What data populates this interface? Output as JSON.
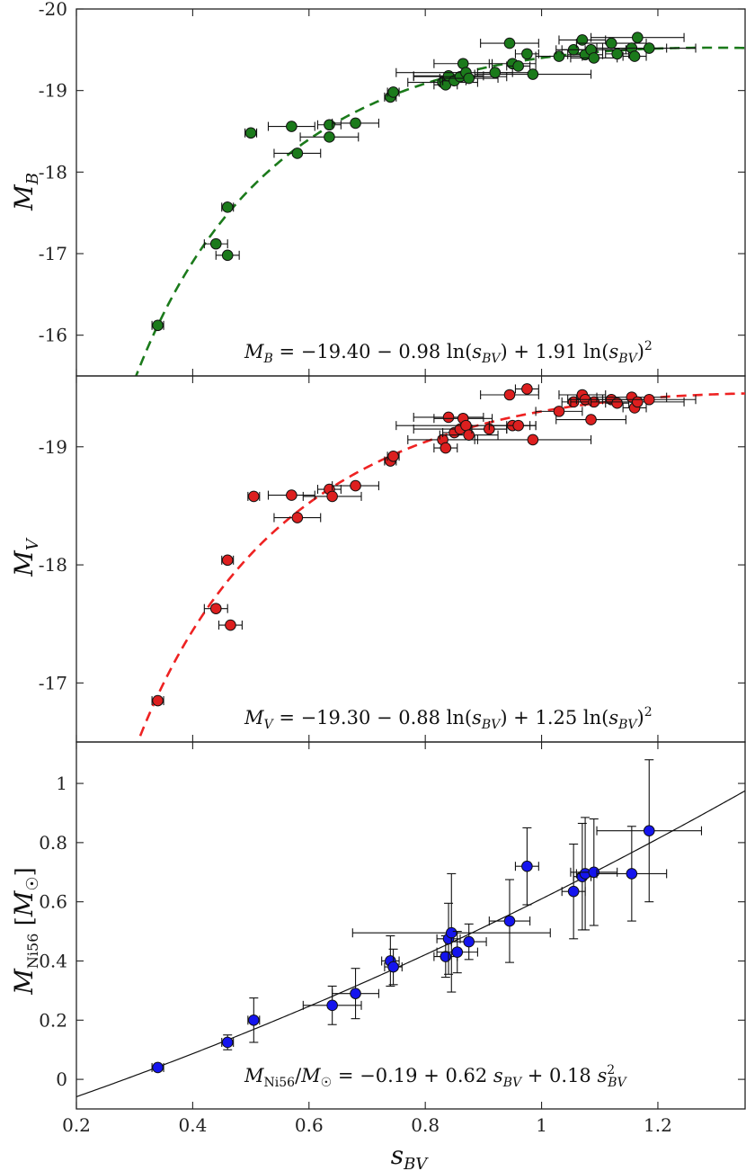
{
  "chart_data": [
    {
      "type": "scatter",
      "panel": "top",
      "ylabel": "M_B",
      "ylim": [
        -15.5,
        -20
      ],
      "yticks": [
        -16,
        -17,
        -18,
        -19,
        -20
      ],
      "xlim": [
        0.2,
        1.35
      ],
      "color": "#1b7a1b",
      "fit_color": "#1b7a1b",
      "fit_coeffs": [
        -19.4,
        -0.98,
        1.91
      ],
      "fit_equation": "M_B = −19.40 − 0.98 ln(s_BV) + 1.91 ln(s_BV)²",
      "points": [
        {
          "x": 0.34,
          "y": -16.12,
          "xerr": 0.01
        },
        {
          "x": 0.44,
          "y": -17.12,
          "xerr": 0.02
        },
        {
          "x": 0.46,
          "y": -16.98,
          "xerr": 0.02
        },
        {
          "x": 0.46,
          "y": -17.57,
          "xerr": 0.01
        },
        {
          "x": 0.5,
          "y": -18.48,
          "xerr": 0.01
        },
        {
          "x": 0.57,
          "y": -18.56,
          "xerr": 0.04
        },
        {
          "x": 0.58,
          "y": -18.23,
          "xerr": 0.04
        },
        {
          "x": 0.635,
          "y": -18.58,
          "xerr": 0.02
        },
        {
          "x": 0.635,
          "y": -18.43,
          "xerr": 0.05
        },
        {
          "x": 0.68,
          "y": -18.6,
          "xerr": 0.04
        },
        {
          "x": 0.74,
          "y": -18.92,
          "xerr": 0.01
        },
        {
          "x": 0.745,
          "y": -18.98,
          "xerr": 0.01
        },
        {
          "x": 0.83,
          "y": -19.1,
          "xerr": 0.06
        },
        {
          "x": 0.835,
          "y": -19.07,
          "xerr": 0.02
        },
        {
          "x": 0.84,
          "y": -19.18,
          "xerr": 0.06
        },
        {
          "x": 0.85,
          "y": -19.12,
          "xerr": 0.02
        },
        {
          "x": 0.86,
          "y": -19.17,
          "xerr": 0.08
        },
        {
          "x": 0.865,
          "y": -19.33,
          "xerr": 0.05
        },
        {
          "x": 0.87,
          "y": -19.22,
          "xerr": 0.12
        },
        {
          "x": 0.875,
          "y": -19.15,
          "xerr": 0.05
        },
        {
          "x": 0.945,
          "y": -19.58,
          "xerr": 0.05
        },
        {
          "x": 0.95,
          "y": -19.33,
          "xerr": 0.04
        },
        {
          "x": 0.96,
          "y": -19.3,
          "xerr": 0.02
        },
        {
          "x": 0.975,
          "y": -19.45,
          "xerr": 0.02
        },
        {
          "x": 0.985,
          "y": -19.2,
          "xerr": 0.1
        },
        {
          "x": 1.03,
          "y": -19.42,
          "xerr": 0.04
        },
        {
          "x": 1.055,
          "y": -19.5,
          "xerr": 0.02
        },
        {
          "x": 1.07,
          "y": -19.62,
          "xerr": 0.04
        },
        {
          "x": 1.075,
          "y": -19.44,
          "xerr": 0.03
        },
        {
          "x": 1.085,
          "y": -19.5,
          "xerr": 0.06
        },
        {
          "x": 1.09,
          "y": -19.4,
          "xerr": 0.04
        },
        {
          "x": 1.12,
          "y": -19.58,
          "xerr": 0.06
        },
        {
          "x": 1.13,
          "y": -19.45,
          "xerr": 0.02
        },
        {
          "x": 1.155,
          "y": -19.52,
          "xerr": 0.06
        },
        {
          "x": 1.16,
          "y": -19.42,
          "xerr": 0.02
        },
        {
          "x": 1.165,
          "y": -19.65,
          "xerr": 0.08
        },
        {
          "x": 1.185,
          "y": -19.52,
          "xerr": 0.08
        },
        {
          "x": 0.92,
          "y": -19.22,
          "xerr": 0.03
        }
      ]
    },
    {
      "type": "scatter",
      "panel": "middle",
      "ylabel": "M_V",
      "ylim": [
        -16.5,
        -19.6
      ],
      "yticks": [
        -17,
        -18,
        -19
      ],
      "xlim": [
        0.2,
        1.35
      ],
      "color": "#dd1f1f",
      "fit_color": "#ee2222",
      "fit_coeffs": [
        -19.3,
        -0.88,
        1.25
      ],
      "fit_equation": "M_V = −19.30 − 0.88 ln(s_BV) + 1.25 ln(s_BV)²",
      "points": [
        {
          "x": 0.34,
          "y": -16.85,
          "xerr": 0.01
        },
        {
          "x": 0.44,
          "y": -17.63,
          "xerr": 0.02
        },
        {
          "x": 0.465,
          "y": -17.49,
          "xerr": 0.02
        },
        {
          "x": 0.46,
          "y": -18.04,
          "xerr": 0.01
        },
        {
          "x": 0.505,
          "y": -18.58,
          "xerr": 0.01
        },
        {
          "x": 0.57,
          "y": -18.59,
          "xerr": 0.04
        },
        {
          "x": 0.58,
          "y": -18.4,
          "xerr": 0.04
        },
        {
          "x": 0.635,
          "y": -18.64,
          "xerr": 0.02
        },
        {
          "x": 0.64,
          "y": -18.58,
          "xerr": 0.05
        },
        {
          "x": 0.68,
          "y": -18.67,
          "xerr": 0.04
        },
        {
          "x": 0.74,
          "y": -18.88,
          "xerr": 0.01
        },
        {
          "x": 0.745,
          "y": -18.92,
          "xerr": 0.01
        },
        {
          "x": 0.83,
          "y": -19.06,
          "xerr": 0.06
        },
        {
          "x": 0.835,
          "y": -18.99,
          "xerr": 0.02
        },
        {
          "x": 0.84,
          "y": -19.25,
          "xerr": 0.06
        },
        {
          "x": 0.85,
          "y": -19.12,
          "xerr": 0.02
        },
        {
          "x": 0.86,
          "y": -19.15,
          "xerr": 0.08
        },
        {
          "x": 0.865,
          "y": -19.24,
          "xerr": 0.05
        },
        {
          "x": 0.87,
          "y": -19.18,
          "xerr": 0.12
        },
        {
          "x": 0.875,
          "y": -19.1,
          "xerr": 0.05
        },
        {
          "x": 0.91,
          "y": -19.15,
          "xerr": 0.03
        },
        {
          "x": 0.945,
          "y": -19.44,
          "xerr": 0.05
        },
        {
          "x": 0.95,
          "y": -19.18,
          "xerr": 0.04
        },
        {
          "x": 0.96,
          "y": -19.18,
          "xerr": 0.02
        },
        {
          "x": 0.975,
          "y": -19.49,
          "xerr": 0.02
        },
        {
          "x": 0.985,
          "y": -19.06,
          "xerr": 0.1
        },
        {
          "x": 1.03,
          "y": -19.3,
          "xerr": 0.04
        },
        {
          "x": 1.055,
          "y": -19.38,
          "xerr": 0.02
        },
        {
          "x": 1.07,
          "y": -19.44,
          "xerr": 0.04
        },
        {
          "x": 1.075,
          "y": -19.4,
          "xerr": 0.03
        },
        {
          "x": 1.085,
          "y": -19.23,
          "xerr": 0.06
        },
        {
          "x": 1.09,
          "y": -19.38,
          "xerr": 0.04
        },
        {
          "x": 1.12,
          "y": -19.4,
          "xerr": 0.06
        },
        {
          "x": 1.13,
          "y": -19.37,
          "xerr": 0.02
        },
        {
          "x": 1.155,
          "y": -19.42,
          "xerr": 0.06
        },
        {
          "x": 1.16,
          "y": -19.33,
          "xerr": 0.02
        },
        {
          "x": 1.165,
          "y": -19.38,
          "xerr": 0.08
        },
        {
          "x": 1.185,
          "y": -19.4,
          "xerr": 0.08
        }
      ]
    },
    {
      "type": "scatter",
      "panel": "bottom",
      "ylabel": "M_Ni56 [M_☉]",
      "xlabel": "s_BV",
      "ylim": [
        -0.1,
        1.14
      ],
      "yticks": [
        0,
        0.2,
        0.4,
        0.6,
        0.8,
        1
      ],
      "ytick_labels": [
        "0",
        "0.2",
        "0.4",
        "0.6",
        "0.8",
        "1"
      ],
      "xlim": [
        0.2,
        1.35
      ],
      "xticks": [
        0.2,
        0.4,
        0.6,
        0.8,
        1,
        1.2
      ],
      "xtick_labels": [
        "0.2",
        "0.4",
        "0.6",
        "0.8",
        "1",
        "1.2"
      ],
      "color": "#1515ee",
      "fit_color": "#111111",
      "fit_coeffs": [
        -0.19,
        0.62,
        0.18
      ],
      "fit_equation": "M_Ni56/M_☉ = −0.19 + 0.62 s_BV + 0.18 s_BV²",
      "points": [
        {
          "x": 0.34,
          "y": 0.04,
          "xerr": 0.01,
          "yerr": 0.01
        },
        {
          "x": 0.46,
          "y": 0.125,
          "xerr": 0.01,
          "yerr": 0.025
        },
        {
          "x": 0.505,
          "y": 0.2,
          "xerr": 0.01,
          "yerr": 0.075
        },
        {
          "x": 0.64,
          "y": 0.25,
          "xerr": 0.05,
          "yerr": 0.065
        },
        {
          "x": 0.68,
          "y": 0.29,
          "xerr": 0.04,
          "yerr": 0.085
        },
        {
          "x": 0.74,
          "y": 0.4,
          "xerr": 0.015,
          "yerr": 0.085
        },
        {
          "x": 0.745,
          "y": 0.38,
          "xerr": 0.015,
          "yerr": 0.06
        },
        {
          "x": 0.835,
          "y": 0.415,
          "xerr": 0.02,
          "yerr": 0.07
        },
        {
          "x": 0.84,
          "y": 0.475,
          "xerr": 0.02,
          "yerr": 0.12
        },
        {
          "x": 0.845,
          "y": 0.495,
          "xerr": 0.17,
          "yerr": 0.2
        },
        {
          "x": 0.855,
          "y": 0.43,
          "xerr": 0.035,
          "yerr": 0.07
        },
        {
          "x": 0.875,
          "y": 0.465,
          "xerr": 0.03,
          "yerr": 0.06
        },
        {
          "x": 0.945,
          "y": 0.535,
          "xerr": 0.035,
          "yerr": 0.14
        },
        {
          "x": 0.975,
          "y": 0.72,
          "xerr": 0.02,
          "yerr": 0.13
        },
        {
          "x": 1.055,
          "y": 0.635,
          "xerr": 0.02,
          "yerr": 0.16
        },
        {
          "x": 1.07,
          "y": 0.685,
          "xerr": 0.015,
          "yerr": 0.18
        },
        {
          "x": 1.075,
          "y": 0.695,
          "xerr": 0.015,
          "yerr": 0.19
        },
        {
          "x": 1.09,
          "y": 0.7,
          "xerr": 0.04,
          "yerr": 0.18
        },
        {
          "x": 1.155,
          "y": 0.695,
          "xerr": 0.06,
          "yerr": 0.16
        },
        {
          "x": 1.185,
          "y": 0.84,
          "xerr": 0.09,
          "yerr": 0.24
        }
      ]
    }
  ]
}
